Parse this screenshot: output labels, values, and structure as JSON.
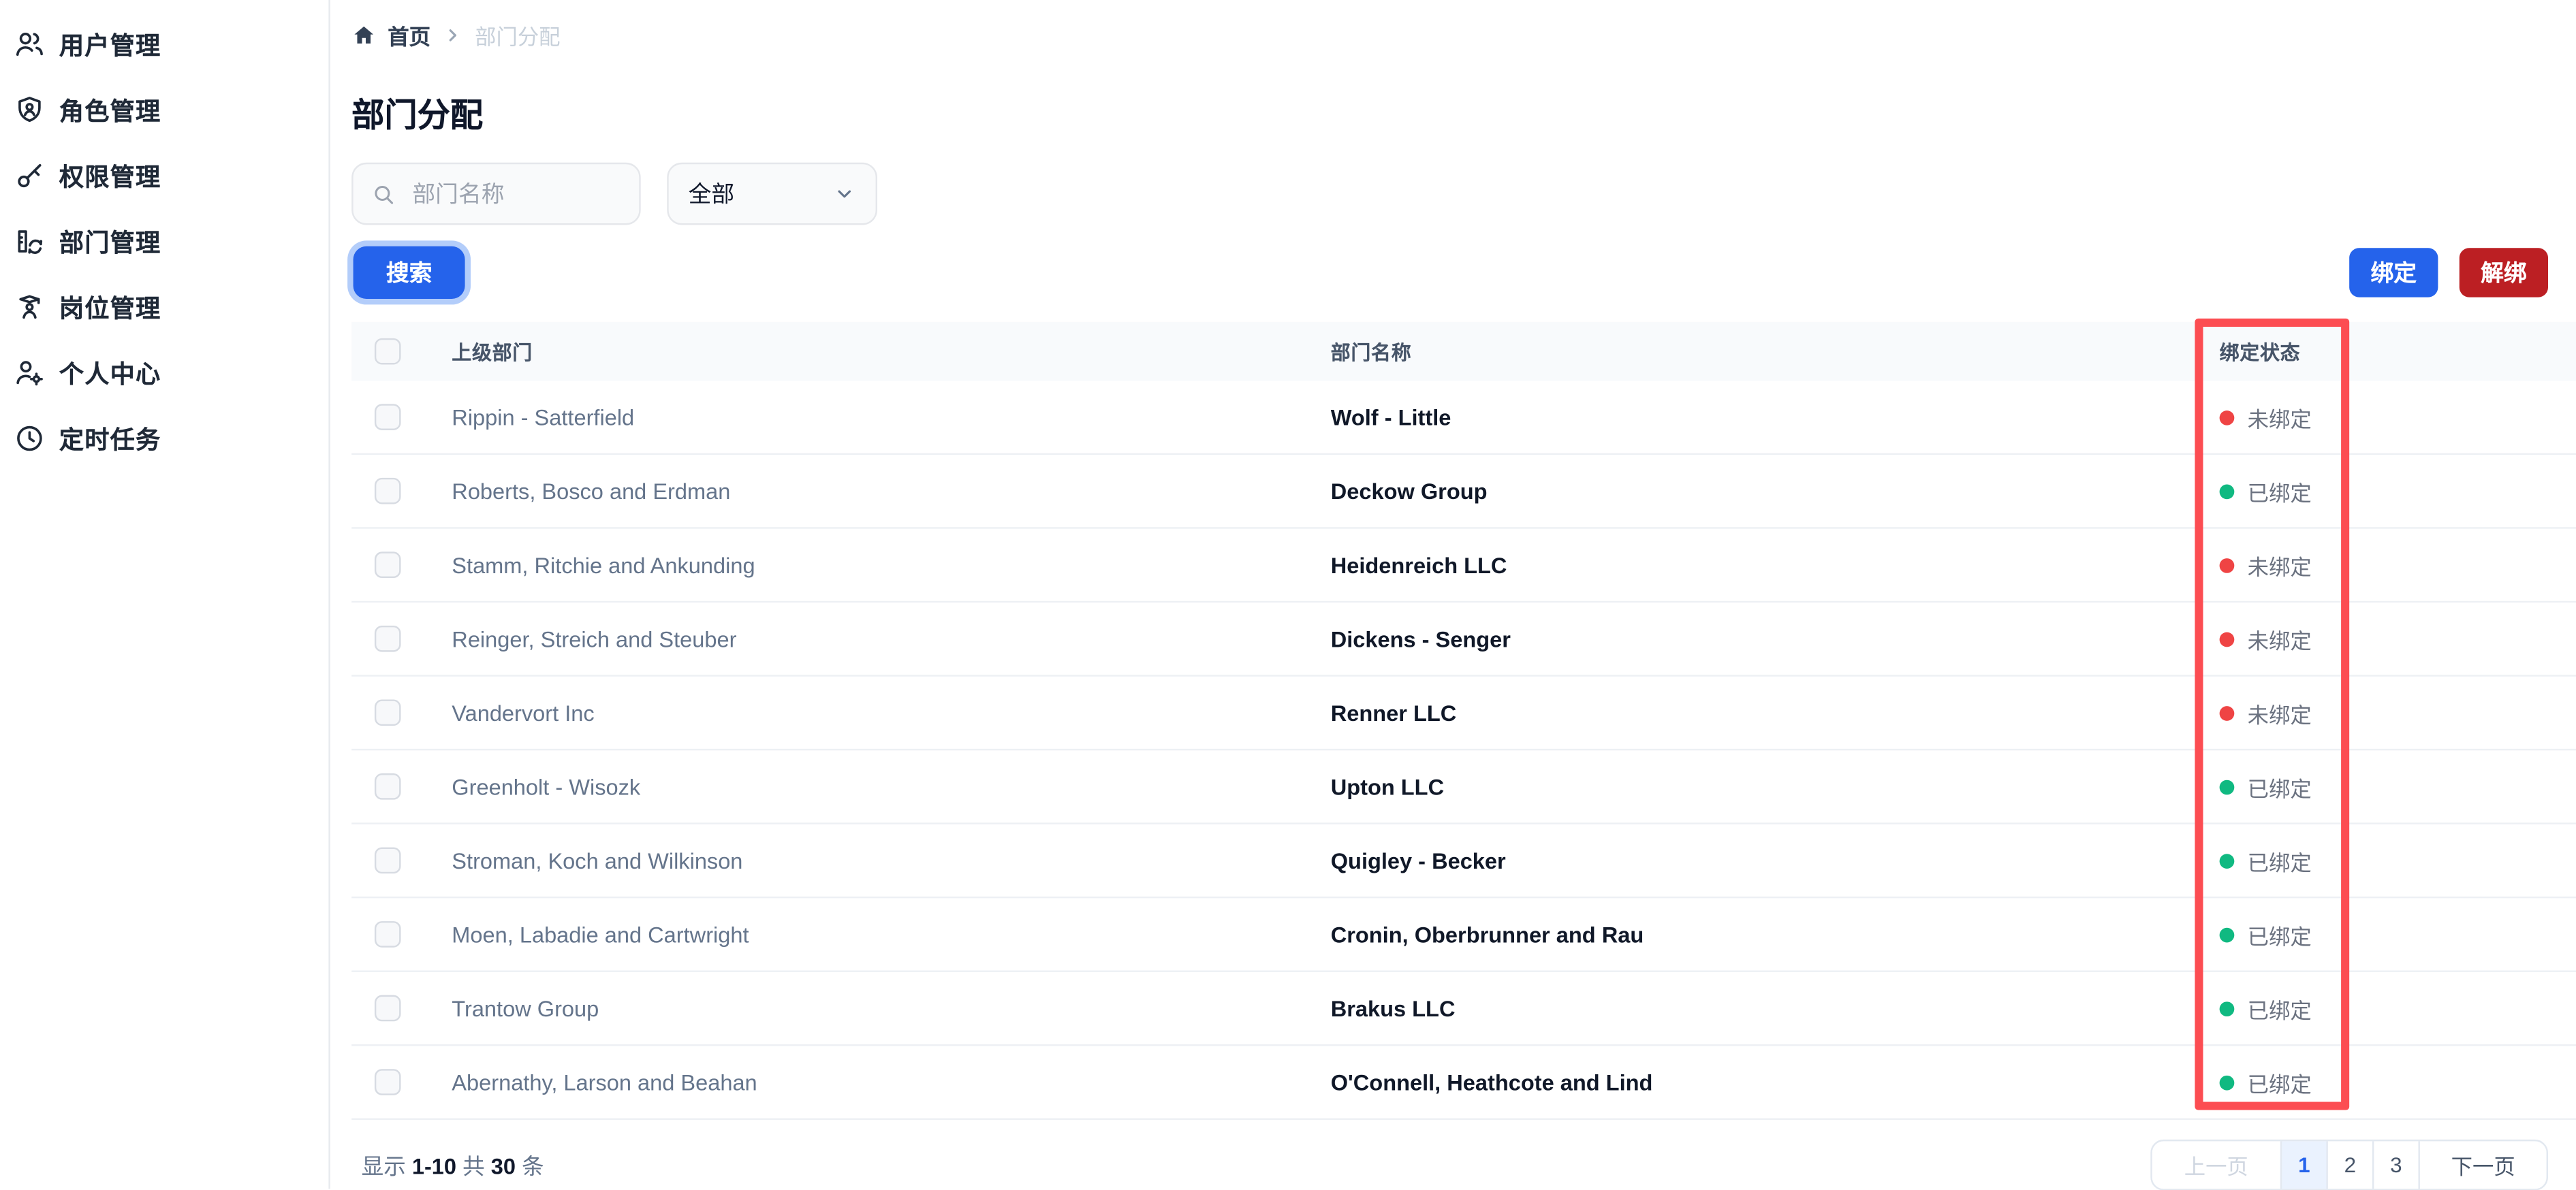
{
  "sidebar": {
    "items": [
      {
        "key": "users",
        "icon": "users",
        "label": "用户管理"
      },
      {
        "key": "roles",
        "icon": "shield-user",
        "label": "角色管理"
      },
      {
        "key": "permissions",
        "icon": "key",
        "label": "权限管理"
      },
      {
        "key": "departments",
        "icon": "dept",
        "label": "部门管理"
      },
      {
        "key": "positions",
        "icon": "position",
        "label": "岗位管理"
      },
      {
        "key": "profile",
        "icon": "user-gear",
        "label": "个人中心"
      },
      {
        "key": "tasks",
        "icon": "clock",
        "label": "定时任务"
      }
    ]
  },
  "breadcrumb": {
    "home_label": "首页",
    "current": "部门分配"
  },
  "page": {
    "title": "部门分配"
  },
  "filters": {
    "search_placeholder": "部门名称",
    "status_filter_value": "全部",
    "search_button_label": "搜索"
  },
  "actions": {
    "bind_label": "绑定",
    "unbind_label": "解绑"
  },
  "table": {
    "columns": {
      "parent": "上级部门",
      "name": "部门名称",
      "status": "绑定状态"
    },
    "status_labels": {
      "bound": "已绑定",
      "unbound": "未绑定"
    },
    "rows": [
      {
        "parent": "Rippin - Satterfield",
        "name": "Wolf - Little",
        "status": "未绑定",
        "state": "unbound"
      },
      {
        "parent": "Roberts, Bosco and Erdman",
        "name": "Deckow Group",
        "status": "已绑定",
        "state": "bound"
      },
      {
        "parent": "Stamm, Ritchie and Ankunding",
        "name": "Heidenreich LLC",
        "status": "未绑定",
        "state": "unbound"
      },
      {
        "parent": "Reinger, Streich and Steuber",
        "name": "Dickens - Senger",
        "status": "未绑定",
        "state": "unbound"
      },
      {
        "parent": "Vandervort Inc",
        "name": "Renner LLC",
        "status": "未绑定",
        "state": "unbound"
      },
      {
        "parent": "Greenholt - Wisozk",
        "name": "Upton LLC",
        "status": "已绑定",
        "state": "bound"
      },
      {
        "parent": "Stroman, Koch and Wilkinson",
        "name": "Quigley - Becker",
        "status": "已绑定",
        "state": "bound"
      },
      {
        "parent": "Moen, Labadie and Cartwright",
        "name": "Cronin, Oberbrunner and Rau",
        "status": "已绑定",
        "state": "bound"
      },
      {
        "parent": "Trantow Group",
        "name": "Brakus LLC",
        "status": "已绑定",
        "state": "bound"
      },
      {
        "parent": "Abernathy, Larson and Beahan",
        "name": "O'Connell, Heathcote and Lind",
        "status": "已绑定",
        "state": "bound"
      }
    ]
  },
  "pagination": {
    "info": {
      "prefix": "显示",
      "range": "1-10",
      "middle": "共",
      "total": "30",
      "suffix": "条"
    },
    "prev_label": "上一页",
    "pages": [
      "1",
      "2",
      "3"
    ],
    "active_page": "1",
    "next_label": "下一页"
  },
  "colors": {
    "primary_blue": "#2563eb",
    "danger_red": "#bc1f23",
    "highlight_box_red": "#fc4d52",
    "status_bound_green": "#10b981",
    "status_unbound_red": "#ef4444"
  }
}
